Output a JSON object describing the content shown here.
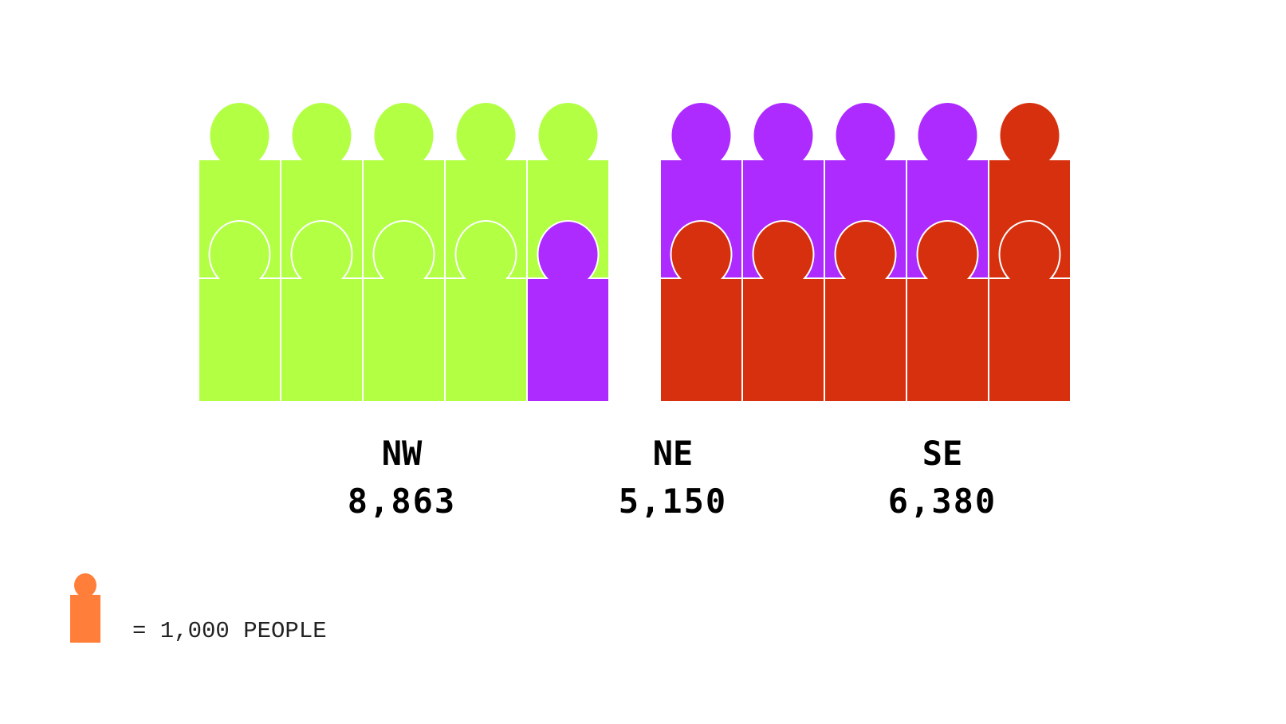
{
  "chart_data": {
    "type": "pictogram",
    "unit_value": 1000,
    "legend": {
      "label": "= 1,000 PEOPLE",
      "icon": "person-icon",
      "color": "#ff7f3a"
    },
    "series": [
      {
        "name": "NW",
        "value": 8863,
        "display": "8,863",
        "color": "#b2ff44"
      },
      {
        "name": "NE",
        "value": 5150,
        "display": "5,150",
        "color": "#ad2bff"
      },
      {
        "name": "SE",
        "value": 6380,
        "display": "6,380",
        "color": "#d7300f"
      }
    ]
  }
}
